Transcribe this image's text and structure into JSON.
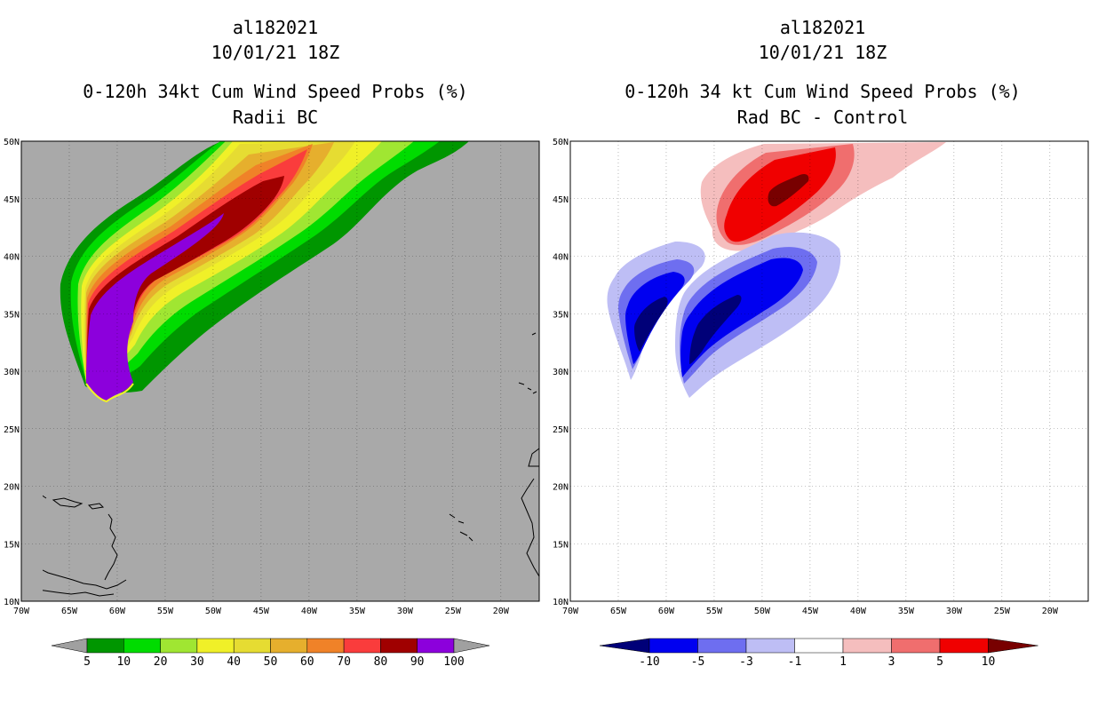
{
  "left_panel": {
    "title_lines": [
      "al182021",
      "10/01/21 18Z",
      "0-120h 34kt Cum Wind Speed Probs (%)",
      "Radii BC"
    ]
  },
  "right_panel": {
    "title_lines": [
      "al182021",
      "10/01/21 18Z",
      "0-120h 34 kt Cum Wind Speed Probs (%)",
      "Rad BC - Control"
    ]
  },
  "map": {
    "lat_labels": [
      "50N",
      "45N",
      "40N",
      "35N",
      "30N",
      "25N",
      "20N",
      "15N",
      "10N"
    ],
    "lon_labels": [
      "70W",
      "65W",
      "60W",
      "55W",
      "50W",
      "45W",
      "40W",
      "35W",
      "30W",
      "25W",
      "20W"
    ],
    "lat_range": [
      10,
      50
    ],
    "lon_range": [
      -70,
      -16
    ]
  },
  "left_colorbar": {
    "labels": [
      "5",
      "10",
      "20",
      "30",
      "40",
      "50",
      "60",
      "70",
      "80",
      "90",
      "100"
    ],
    "colors": [
      "#009600",
      "#00dc00",
      "#a0e632",
      "#f0f028",
      "#e6dc32",
      "#e6af2d",
      "#f08228",
      "#fa3c3c",
      "#a00000",
      "#8c00dc"
    ],
    "extend_color": "#a0a0a0",
    "background_color": "#a9a9a9"
  },
  "right_colorbar": {
    "labels": [
      "-10",
      "-5",
      "-3",
      "-1",
      "1",
      "3",
      "5",
      "10"
    ],
    "colors": [
      "#000078",
      "#0000f0",
      "#6e6ef0",
      "#bebef5",
      "#ffffff",
      "#f5bebe",
      "#f06e6e",
      "#f00000",
      "#780000"
    ]
  }
}
